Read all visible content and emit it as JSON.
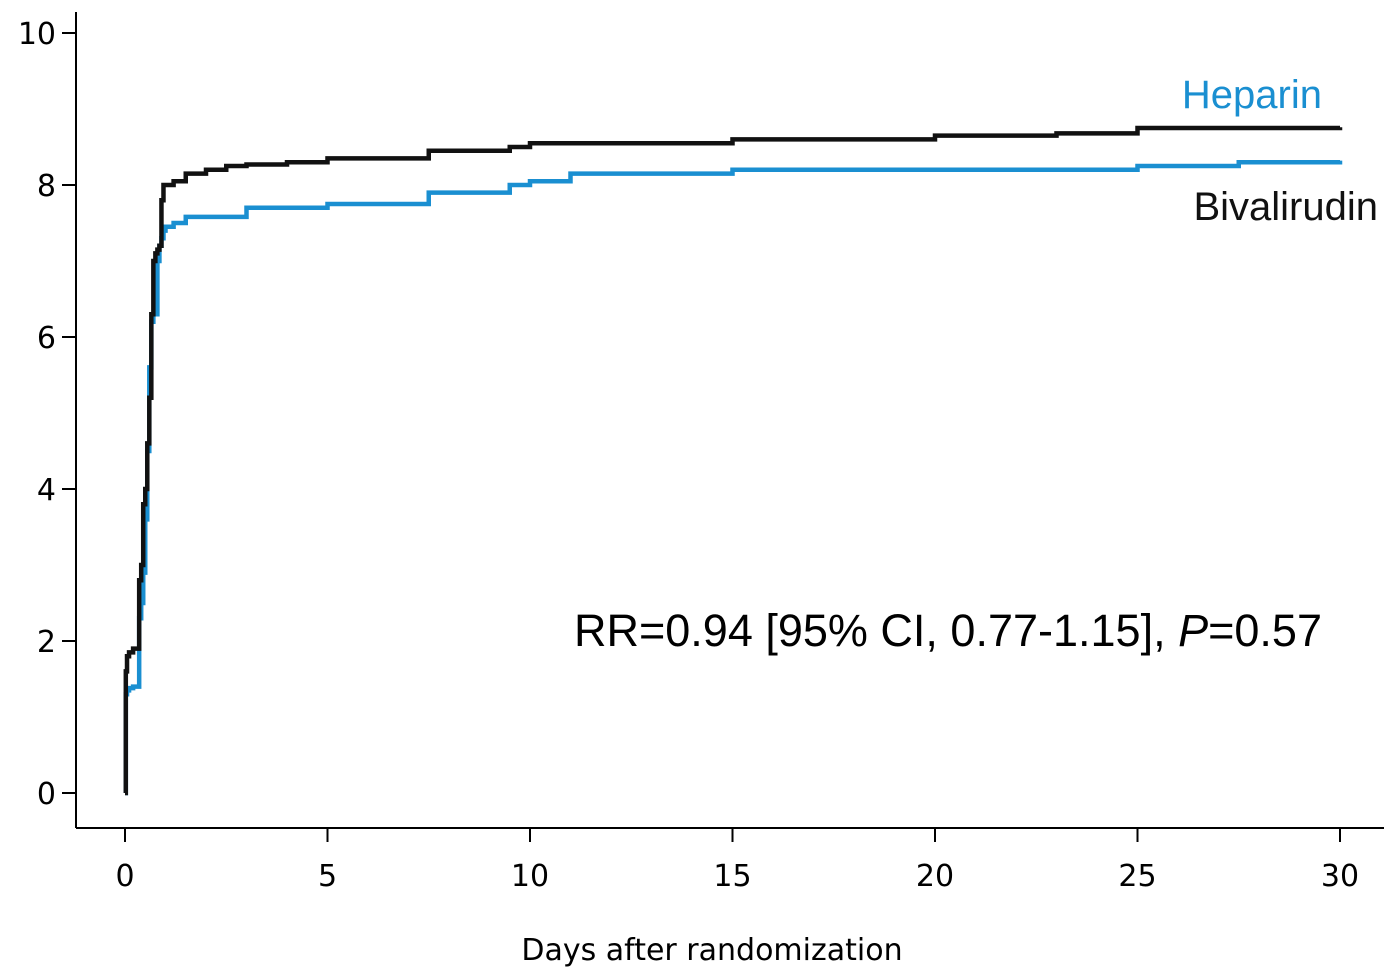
{
  "chart_data": {
    "type": "line",
    "xlabel": "Days after randomization",
    "ylabel": "",
    "xlim": [
      -1.2,
      30
    ],
    "ylim": [
      -0.5,
      10.2
    ],
    "xticks": [
      0,
      5,
      10,
      15,
      20,
      25,
      30
    ],
    "yticks": [
      0,
      2,
      4,
      6,
      8,
      10
    ],
    "x_tick_labels": [
      "0",
      "5",
      "10",
      "15",
      "20",
      "25",
      "30"
    ],
    "y_tick_labels": [
      "0",
      "2",
      "4",
      "6",
      "8",
      "10"
    ],
    "grid": false,
    "annotation": {
      "prefix": "RR=0.94 [95% CI, 0.77-1.15], ",
      "p_symbol": "P",
      "suffix": "=0.57"
    },
    "series": [
      {
        "name": "Heparin",
        "color": "#1a8fd1",
        "x": [
          0,
          0.02,
          0.05,
          0.1,
          0.2,
          0.3,
          0.35,
          0.4,
          0.45,
          0.5,
          0.55,
          0.6,
          0.65,
          0.7,
          0.75,
          0.8,
          0.85,
          0.9,
          0.95,
          1.0,
          1.2,
          1.5,
          2.0,
          3.0,
          5.0,
          7.5,
          9.5,
          10.0,
          11.0,
          15.0,
          20.0,
          25.0,
          27.5,
          30.0
        ],
        "y": [
          0,
          1.3,
          1.35,
          1.38,
          1.4,
          1.4,
          2.3,
          2.5,
          2.9,
          3.6,
          4.5,
          5.6,
          6.2,
          6.3,
          6.3,
          7.0,
          7.2,
          7.3,
          7.4,
          7.45,
          7.5,
          7.58,
          7.58,
          7.7,
          7.75,
          7.9,
          8.0,
          8.05,
          8.15,
          8.2,
          8.2,
          8.25,
          8.3,
          8.32
        ]
      },
      {
        "name": "Bivalirudin",
        "color": "#111111",
        "x": [
          0,
          0.02,
          0.05,
          0.1,
          0.2,
          0.3,
          0.35,
          0.4,
          0.45,
          0.5,
          0.55,
          0.6,
          0.65,
          0.7,
          0.75,
          0.8,
          0.85,
          0.9,
          0.95,
          1.0,
          1.2,
          1.5,
          2.0,
          2.5,
          3.0,
          4.0,
          5.0,
          7.5,
          9.5,
          10.0,
          15.0,
          20.0,
          23.0,
          25.0,
          30.0
        ],
        "y": [
          0,
          1.6,
          1.8,
          1.85,
          1.9,
          1.9,
          2.8,
          3.0,
          3.8,
          4.0,
          4.6,
          5.2,
          6.3,
          7.0,
          7.1,
          7.15,
          7.2,
          7.8,
          8.0,
          8.0,
          8.05,
          8.15,
          8.2,
          8.25,
          8.27,
          8.3,
          8.35,
          8.45,
          8.5,
          8.55,
          8.6,
          8.65,
          8.68,
          8.75,
          8.76
        ]
      }
    ]
  }
}
